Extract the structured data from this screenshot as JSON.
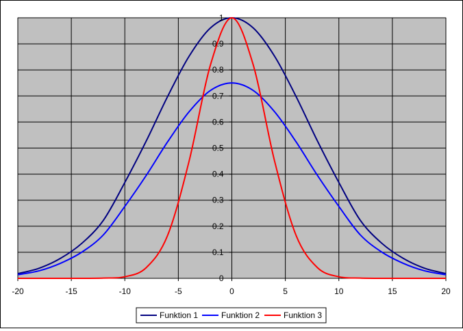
{
  "chart_data": {
    "type": "line",
    "title": "",
    "xlabel": "",
    "ylabel": "",
    "xlim": [
      -20,
      20
    ],
    "ylim": [
      0,
      1
    ],
    "x_ticks": [
      -20,
      -15,
      -10,
      -5,
      0,
      5,
      10,
      15,
      20
    ],
    "y_ticks": [
      0,
      0.1,
      0.2,
      0.3,
      0.4,
      0.5,
      0.6,
      0.7,
      0.8,
      0.9,
      1
    ],
    "x_tick_labels": [
      "-20",
      "-15",
      "-10",
      "-5",
      "0",
      "5",
      "10",
      "15",
      "20"
    ],
    "y_tick_labels": [
      "0",
      "0.1",
      "0.2",
      "0.3",
      "0.4",
      "0.5",
      "0.6",
      "0.7",
      "0.8",
      "0.9",
      "1"
    ],
    "grid": true,
    "plot_background": "#c0c0c0",
    "legend_position": "bottom",
    "x": [
      -20,
      -18,
      -16,
      -14,
      -12,
      -10,
      -8,
      -6,
      -4,
      -2,
      0,
      2,
      4,
      6,
      8,
      10,
      12,
      14,
      16,
      18,
      20
    ],
    "series": [
      {
        "name": "Funktion 1",
        "color": "#000080",
        "values": [
          0.018,
          0.039,
          0.077,
          0.135,
          0.223,
          0.368,
          0.527,
          0.698,
          0.852,
          0.961,
          1.0,
          0.961,
          0.852,
          0.698,
          0.527,
          0.368,
          0.223,
          0.135,
          0.077,
          0.039,
          0.018
        ]
      },
      {
        "name": "Funktion 2",
        "color": "#0000ff",
        "values": [
          0.014,
          0.029,
          0.058,
          0.101,
          0.167,
          0.276,
          0.395,
          0.524,
          0.639,
          0.721,
          0.75,
          0.721,
          0.639,
          0.524,
          0.395,
          0.276,
          0.167,
          0.101,
          0.058,
          0.029,
          0.014
        ]
      },
      {
        "name": "Funktion 3",
        "color": "#ff0000",
        "values": [
          0.0,
          0.0,
          0.0,
          0.0,
          0.001,
          0.006,
          0.041,
          0.165,
          0.449,
          0.819,
          1.0,
          0.819,
          0.449,
          0.165,
          0.041,
          0.006,
          0.001,
          0.0,
          0.0,
          0.0,
          0.0
        ]
      }
    ]
  }
}
